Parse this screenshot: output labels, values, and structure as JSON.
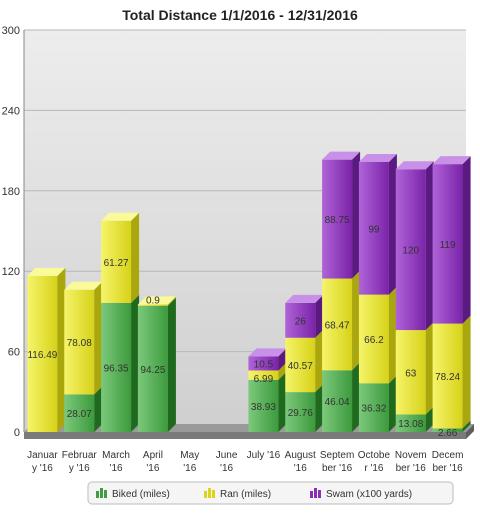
{
  "chart_data": {
    "type": "bar",
    "stacked": true,
    "title": "Total Distance 1/1/2016 - 12/31/2016",
    "ylim": [
      0,
      300
    ],
    "yticks": [
      0,
      60,
      120,
      180,
      240,
      300
    ],
    "grid": true,
    "legend_position": "bottom",
    "categories": [
      [
        "Januar",
        "y '16"
      ],
      [
        "Februar",
        "y '16"
      ],
      [
        "March",
        "'16"
      ],
      [
        "April",
        "'16"
      ],
      [
        "May",
        "'16"
      ],
      [
        "June",
        "'16"
      ],
      [
        "July '16",
        ""
      ],
      [
        "August",
        "'16"
      ],
      [
        "Septem",
        "ber '16"
      ],
      [
        "Octobe",
        "r '16"
      ],
      [
        "Novem",
        "ber '16"
      ],
      [
        "Decem",
        "ber '16"
      ]
    ],
    "series": [
      {
        "name": "Biked (miles)",
        "color": "#3f9e3f",
        "values": [
          0,
          28.07,
          96.35,
          94.25,
          0,
          0,
          38.93,
          29.76,
          46.04,
          36.32,
          13.08,
          2.66
        ],
        "labels": [
          "",
          "28.07",
          "96.35",
          "94.25",
          "",
          "",
          "38.93",
          "29.76",
          "46.04",
          "36.32",
          "13.08",
          "2.66"
        ]
      },
      {
        "name": "Ran (miles)",
        "color": "#e2df22",
        "values": [
          116.49,
          78.08,
          61.27,
          0.9,
          0,
          0,
          6.99,
          40.57,
          68.47,
          66.2,
          63,
          78.24
        ],
        "labels": [
          "116.49",
          "78.08",
          "61.27",
          "0.9",
          "",
          "",
          "6.99",
          "40.57",
          "68.47",
          "66.2",
          "63",
          "78.24"
        ]
      },
      {
        "name": "Swam (x100 yards)",
        "color": "#8a2fb5",
        "values": [
          0,
          0,
          0,
          0,
          0,
          0,
          10.5,
          26,
          88.75,
          99,
          120,
          119
        ],
        "labels": [
          "",
          "",
          "",
          "",
          "",
          "",
          "10.5",
          "26",
          "88.75",
          "99",
          "120",
          "119"
        ]
      }
    ]
  }
}
